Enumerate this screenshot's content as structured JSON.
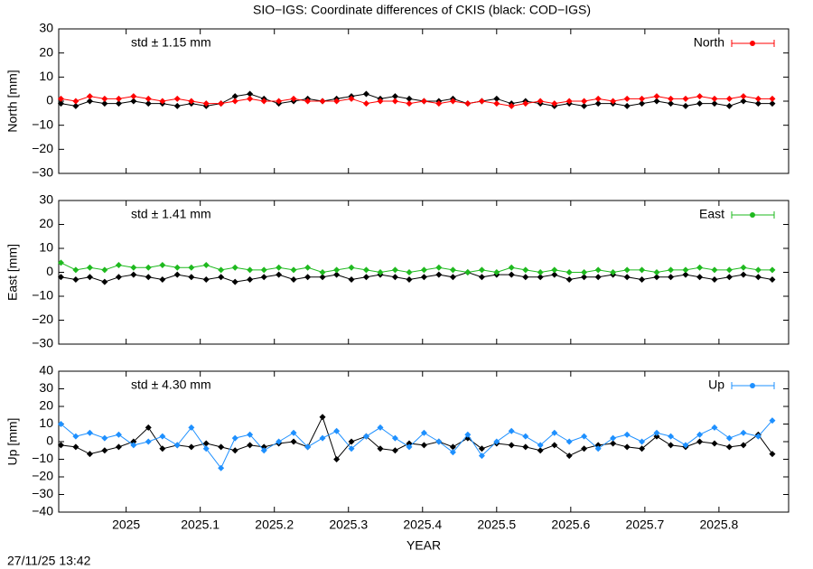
{
  "title": "SIO−IGS: Coordinate differences of CKIS (black: COD−IGS)",
  "timestamp": "27/11/25 13:42",
  "chart_data": [
    {
      "type": "line",
      "ylabel": "North [mm]",
      "annotation": "std ± 1.15 mm",
      "legend": "upper right",
      "xlim": [
        2024.909,
        2025.894
      ],
      "xticks": [
        2025,
        2025.1,
        2025.2,
        2025.3,
        2025.4,
        2025.5,
        2025.6,
        2025.7,
        2025.8
      ],
      "ylim": [
        -30,
        30
      ],
      "yticks": [
        {
          "value": -30,
          "label": "−30"
        },
        {
          "value": -20,
          "label": "−20"
        },
        {
          "value": -10,
          "label": "−10"
        },
        0,
        10,
        20,
        30
      ],
      "x": [
        2024.912,
        2024.932,
        2024.951,
        2024.971,
        2024.99,
        2025.01,
        2025.03,
        2025.049,
        2025.069,
        2025.088,
        2025.108,
        2025.128,
        2025.147,
        2025.167,
        2025.186,
        2025.206,
        2025.226,
        2025.245,
        2025.265,
        2025.284,
        2025.304,
        2025.324,
        2025.343,
        2025.363,
        2025.382,
        2025.402,
        2025.422,
        2025.441,
        2025.461,
        2025.48,
        2025.5,
        2025.52,
        2025.539,
        2025.559,
        2025.578,
        2025.598,
        2025.618,
        2025.637,
        2025.657,
        2025.676,
        2025.696,
        2025.716,
        2025.735,
        2025.755,
        2025.774,
        2025.794,
        2025.814,
        2025.833,
        2025.853,
        2025.872
      ],
      "series": [
        {
          "color": "#000000",
          "values": [
            -1,
            -2,
            0,
            -1,
            -1,
            0,
            -1,
            -1,
            -2,
            -1,
            -2,
            -1,
            2,
            3,
            1,
            -1,
            0,
            1,
            0,
            1,
            2,
            3,
            1,
            2,
            1,
            0,
            0,
            1,
            -1,
            0,
            1,
            -1,
            0,
            -1,
            -2,
            -1,
            -2,
            -1,
            -1,
            -2,
            -1,
            0,
            -1,
            -2,
            -1,
            -1,
            -2,
            0,
            -1,
            -1
          ]
        },
        {
          "name": "North",
          "color": "#ff0000",
          "values": [
            1,
            0,
            2,
            1,
            1,
            2,
            1,
            0,
            1,
            0,
            -1,
            -1,
            0,
            1,
            0,
            0,
            1,
            0,
            0,
            0,
            1,
            -1,
            0,
            0,
            -1,
            0,
            -1,
            0,
            -1,
            0,
            -1,
            -2,
            -1,
            0,
            -1,
            0,
            0,
            1,
            0,
            1,
            1,
            2,
            1,
            1,
            2,
            1,
            1,
            2,
            1,
            1
          ]
        }
      ]
    },
    {
      "type": "line",
      "ylabel": "East [mm]",
      "annotation": "std ± 1.41 mm",
      "legend": "upper right",
      "xlim": [
        2024.909,
        2025.894
      ],
      "xticks": [
        2025,
        2025.1,
        2025.2,
        2025.3,
        2025.4,
        2025.5,
        2025.6,
        2025.7,
        2025.8
      ],
      "ylim": [
        -30,
        30
      ],
      "yticks": [
        {
          "value": -30,
          "label": "−30"
        },
        {
          "value": -20,
          "label": "−20"
        },
        {
          "value": -10,
          "label": "−10"
        },
        0,
        10,
        20,
        30
      ],
      "x": [
        2024.912,
        2024.932,
        2024.951,
        2024.971,
        2024.99,
        2025.01,
        2025.03,
        2025.049,
        2025.069,
        2025.088,
        2025.108,
        2025.128,
        2025.147,
        2025.167,
        2025.186,
        2025.206,
        2025.226,
        2025.245,
        2025.265,
        2025.284,
        2025.304,
        2025.324,
        2025.343,
        2025.363,
        2025.382,
        2025.402,
        2025.422,
        2025.441,
        2025.461,
        2025.48,
        2025.5,
        2025.52,
        2025.539,
        2025.559,
        2025.578,
        2025.598,
        2025.618,
        2025.637,
        2025.657,
        2025.676,
        2025.696,
        2025.716,
        2025.735,
        2025.755,
        2025.774,
        2025.794,
        2025.814,
        2025.833,
        2025.853,
        2025.872
      ],
      "series": [
        {
          "color": "#000000",
          "values": [
            -2,
            -3,
            -2,
            -4,
            -2,
            -1,
            -2,
            -3,
            -1,
            -2,
            -3,
            -2,
            -4,
            -3,
            -2,
            -1,
            -3,
            -2,
            -2,
            -1,
            -3,
            -2,
            -1,
            -2,
            -3,
            -2,
            -1,
            -2,
            0,
            -2,
            -1,
            -1,
            -2,
            -2,
            -1,
            -3,
            -2,
            -2,
            -1,
            -2,
            -3,
            -2,
            -2,
            -1,
            -2,
            -3,
            -2,
            -1,
            -2,
            -3
          ]
        },
        {
          "name": "East",
          "color": "#1eb91e",
          "values": [
            4,
            1,
            2,
            1,
            3,
            2,
            2,
            3,
            2,
            2,
            3,
            1,
            2,
            1,
            1,
            2,
            1,
            2,
            0,
            1,
            2,
            1,
            0,
            1,
            0,
            1,
            2,
            1,
            0,
            1,
            0,
            2,
            1,
            0,
            1,
            0,
            0,
            1,
            0,
            1,
            1,
            0,
            1,
            1,
            2,
            1,
            1,
            2,
            1,
            1
          ]
        }
      ]
    },
    {
      "type": "line",
      "ylabel": "Up [mm]",
      "annotation": "std ± 4.30 mm",
      "legend": "upper right",
      "xlabel": "YEAR",
      "xlim": [
        2024.909,
        2025.894
      ],
      "xticks": [
        2025,
        2025.1,
        2025.2,
        2025.3,
        2025.4,
        2025.5,
        2025.6,
        2025.7,
        2025.8
      ],
      "ylim": [
        -40,
        40
      ],
      "yticks": [
        {
          "value": -40,
          "label": "−40"
        },
        {
          "value": -30,
          "label": "−30"
        },
        {
          "value": -20,
          "label": "−20"
        },
        {
          "value": -10,
          "label": "−10"
        },
        0,
        10,
        20,
        30,
        40
      ],
      "x": [
        2024.912,
        2024.932,
        2024.951,
        2024.971,
        2024.99,
        2025.01,
        2025.03,
        2025.049,
        2025.069,
        2025.088,
        2025.108,
        2025.128,
        2025.147,
        2025.167,
        2025.186,
        2025.206,
        2025.226,
        2025.245,
        2025.265,
        2025.284,
        2025.304,
        2025.324,
        2025.343,
        2025.363,
        2025.382,
        2025.402,
        2025.422,
        2025.441,
        2025.461,
        2025.48,
        2025.5,
        2025.52,
        2025.539,
        2025.559,
        2025.578,
        2025.598,
        2025.618,
        2025.637,
        2025.657,
        2025.676,
        2025.696,
        2025.716,
        2025.735,
        2025.755,
        2025.774,
        2025.794,
        2025.814,
        2025.833,
        2025.853,
        2025.872
      ],
      "series": [
        {
          "color": "#000000",
          "values": [
            -2,
            -3,
            -7,
            -5,
            -3,
            0,
            8,
            -4,
            -2,
            -3,
            -1,
            -3,
            -5,
            -2,
            -3,
            -1,
            0,
            -3,
            14,
            -10,
            0,
            3,
            -4,
            -5,
            -1,
            -2,
            0,
            -3,
            2,
            -4,
            -1,
            -2,
            -3,
            -5,
            -2,
            -8,
            -4,
            -2,
            -1,
            -3,
            -4,
            3,
            -2,
            -3,
            0,
            -1,
            -3,
            -2,
            4,
            -7
          ]
        },
        {
          "name": "Up",
          "color": "#1e90ff",
          "values": [
            10,
            3,
            5,
            2,
            4,
            -2,
            0,
            3,
            -2,
            8,
            -4,
            -15,
            2,
            4,
            -5,
            0,
            5,
            -3,
            2,
            6,
            -4,
            3,
            8,
            2,
            -3,
            5,
            0,
            -6,
            4,
            -8,
            0,
            6,
            3,
            -2,
            5,
            0,
            3,
            -4,
            2,
            4,
            0,
            5,
            3,
            -2,
            4,
            8,
            2,
            5,
            3,
            12
          ]
        }
      ]
    }
  ]
}
